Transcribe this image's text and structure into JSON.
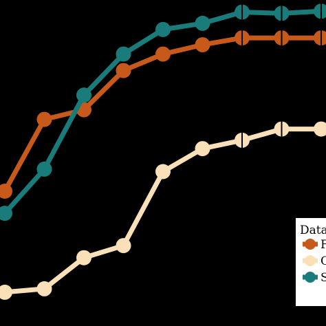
{
  "chart_data": {
    "type": "line",
    "title": "",
    "xlabel": "",
    "ylabel": "",
    "x": [
      1,
      2,
      3,
      4,
      5,
      6,
      7,
      8,
      9
    ],
    "xlim": [
      1,
      9
    ],
    "ylim": [
      0,
      1
    ],
    "grid": false,
    "legend": {
      "position": "bottom-right",
      "title": "Data",
      "labels": [
        "F",
        "C",
        "S"
      ]
    },
    "series": [
      {
        "name": "F",
        "color": "#C75A1A",
        "marker": "circle",
        "values": [
          0.385,
          0.616,
          0.647,
          0.773,
          0.826,
          0.856,
          0.878,
          0.878,
          0.878
        ],
        "error": [
          0,
          0,
          0,
          0,
          0,
          0,
          0.025,
          0.025,
          0.025
        ]
      },
      {
        "name": "C",
        "color": "#F9E0B8",
        "marker": "circle",
        "values": [
          0.06,
          0.071,
          0.171,
          0.21,
          0.448,
          0.522,
          0.549,
          0.585,
          0.585
        ],
        "error": [
          0,
          0,
          0,
          0,
          0,
          0,
          0.025,
          0.025,
          0
        ]
      },
      {
        "name": "S",
        "color": "#1A7C7A",
        "marker": "circle",
        "values": [
          0.314,
          0.456,
          0.694,
          0.826,
          0.905,
          0.925,
          0.961,
          0.957,
          0.964
        ],
        "error": [
          0,
          0,
          0,
          0,
          0,
          0,
          0.025,
          0.025,
          0.025
        ]
      }
    ]
  }
}
